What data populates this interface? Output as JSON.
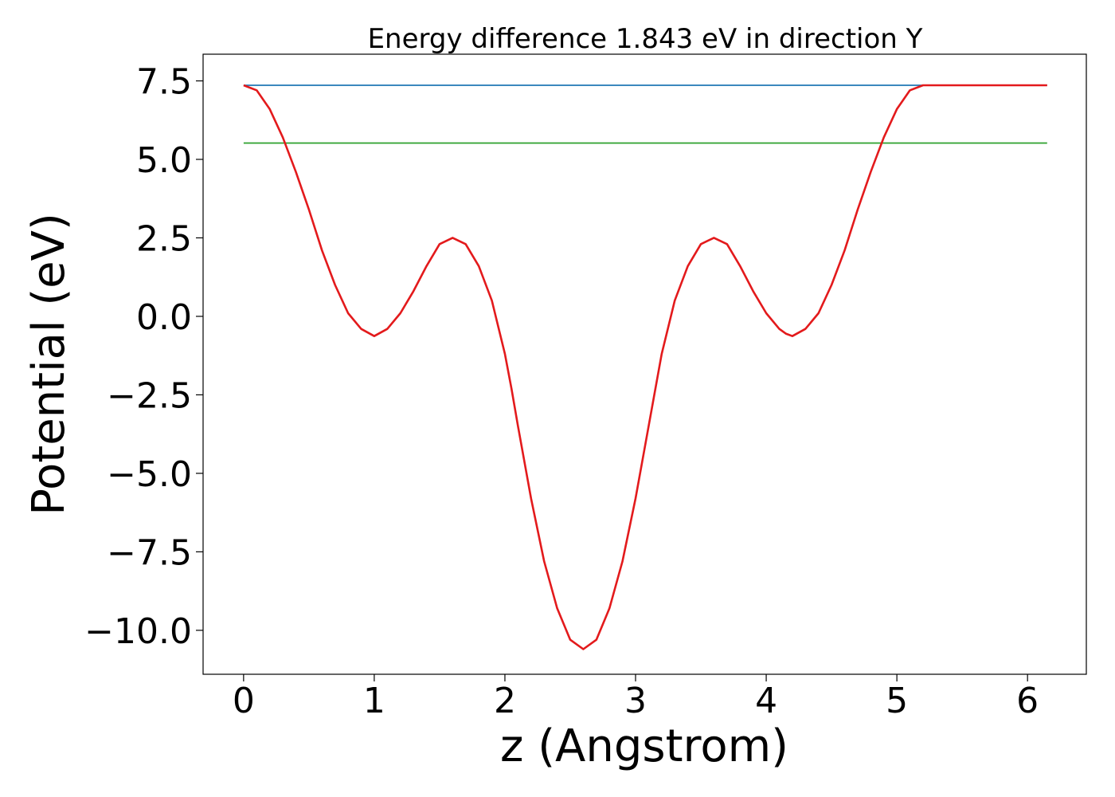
{
  "chart_data": {
    "type": "line",
    "title": "Energy difference 1.843 eV in direction Y",
    "xlabel": "z (Angstrom)",
    "ylabel": "Potential (eV)",
    "xlim": [
      -0.31,
      6.45
    ],
    "ylim": [
      -11.4,
      8.35
    ],
    "xticks": [
      0,
      1,
      2,
      3,
      4,
      5,
      6
    ],
    "xtick_labels": [
      "0",
      "1",
      "2",
      "3",
      "4",
      "5",
      "6"
    ],
    "yticks": [
      7.5,
      5.0,
      2.5,
      0.0,
      -2.5,
      -5.0,
      -7.5,
      -10.0
    ],
    "ytick_labels": [
      "7.5",
      "5.0",
      "2.5",
      "0.0",
      "−2.5",
      "−5.0",
      "−7.5",
      "−10.0"
    ],
    "grid": false,
    "series": [
      {
        "color": "#1f77b4",
        "x": [
          0.0,
          6.15
        ],
        "y": [
          7.36,
          7.36
        ]
      },
      {
        "color": "#2ca02c",
        "x": [
          0.0,
          6.15
        ],
        "y": [
          5.52,
          5.52
        ]
      },
      {
        "color": "#e31a1c",
        "x": [
          0.0,
          0.1,
          0.2,
          0.3,
          0.4,
          0.5,
          0.6,
          0.7,
          0.8,
          0.9,
          1.0,
          1.1,
          1.2,
          1.3,
          1.4,
          1.5,
          1.6,
          1.7,
          1.8,
          1.9,
          2.0,
          2.05,
          2.1,
          2.2,
          2.3,
          2.4,
          2.5,
          2.6,
          2.7,
          2.8,
          2.9,
          3.0,
          3.1,
          3.2,
          3.3,
          3.4,
          3.5,
          3.6,
          3.7,
          3.8,
          3.9,
          4.0,
          4.1,
          4.15,
          4.2,
          4.3,
          4.4,
          4.5,
          4.6,
          4.7,
          4.8,
          4.9,
          5.0,
          5.1,
          5.2,
          5.3,
          5.4,
          5.5,
          5.6,
          5.7,
          5.8,
          5.9,
          6.0,
          6.1,
          6.15
        ],
        "y": [
          7.36,
          7.2,
          6.6,
          5.7,
          4.6,
          3.4,
          2.1,
          1.0,
          0.1,
          -0.4,
          -0.63,
          -0.4,
          0.1,
          0.8,
          1.6,
          2.3,
          2.5,
          2.3,
          1.6,
          0.5,
          -1.2,
          -2.3,
          -3.5,
          -5.8,
          -7.8,
          -9.3,
          -10.3,
          -10.6,
          -10.3,
          -9.3,
          -7.8,
          -5.8,
          -3.5,
          -1.2,
          0.5,
          1.6,
          2.3,
          2.5,
          2.3,
          1.6,
          0.8,
          0.1,
          -0.4,
          -0.55,
          -0.63,
          -0.4,
          0.1,
          1.0,
          2.1,
          3.4,
          4.6,
          5.7,
          6.6,
          7.2,
          7.36,
          7.36,
          7.36,
          7.36,
          7.36,
          7.36,
          7.36,
          7.36,
          7.36,
          7.36,
          7.36
        ]
      }
    ]
  }
}
